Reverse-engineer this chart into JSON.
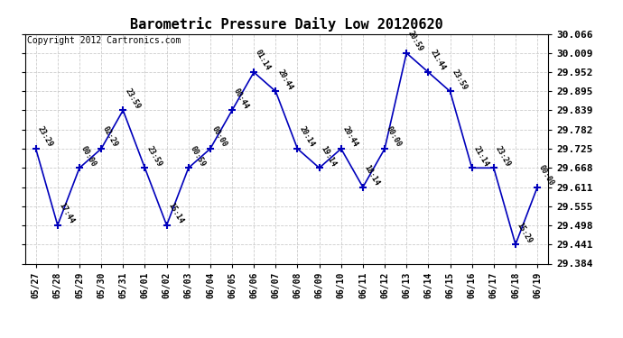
{
  "title": "Barometric Pressure Daily Low 20120620",
  "copyright": "Copyright 2012 Cartronics.com",
  "x_labels": [
    "05/27",
    "05/28",
    "05/29",
    "05/30",
    "05/31",
    "06/01",
    "06/02",
    "06/03",
    "06/04",
    "06/05",
    "06/06",
    "06/07",
    "06/08",
    "06/09",
    "06/10",
    "06/11",
    "06/12",
    "06/13",
    "06/14",
    "06/15",
    "06/16",
    "06/17",
    "06/18",
    "06/19"
  ],
  "y_values": [
    29.725,
    29.498,
    29.668,
    29.725,
    29.839,
    29.668,
    29.498,
    29.668,
    29.725,
    29.839,
    29.952,
    29.895,
    29.725,
    29.668,
    29.725,
    29.611,
    29.725,
    30.009,
    29.952,
    29.895,
    29.668,
    29.668,
    29.441,
    29.611
  ],
  "point_labels": [
    "23:29",
    "17:44",
    "00:00",
    "02:29",
    "23:59",
    "23:59",
    "15:14",
    "00:59",
    "00:00",
    "00:44",
    "01:14",
    "20:44",
    "20:14",
    "19:14",
    "20:44",
    "18:14",
    "00:00",
    "20:59",
    "21:44",
    "23:59",
    "21:14",
    "23:29",
    "15:29",
    "00:00"
  ],
  "line_color": "#0000bb",
  "marker_color": "#0000bb",
  "background_color": "#ffffff",
  "grid_color": "#cccccc",
  "ylim_min": 29.384,
  "ylim_max": 30.066,
  "yticks": [
    29.384,
    29.441,
    29.498,
    29.555,
    29.611,
    29.668,
    29.725,
    29.782,
    29.839,
    29.895,
    29.952,
    30.009,
    30.066
  ],
  "title_fontsize": 11,
  "copyright_fontsize": 7,
  "label_fontsize": 6,
  "tick_fontsize": 7
}
